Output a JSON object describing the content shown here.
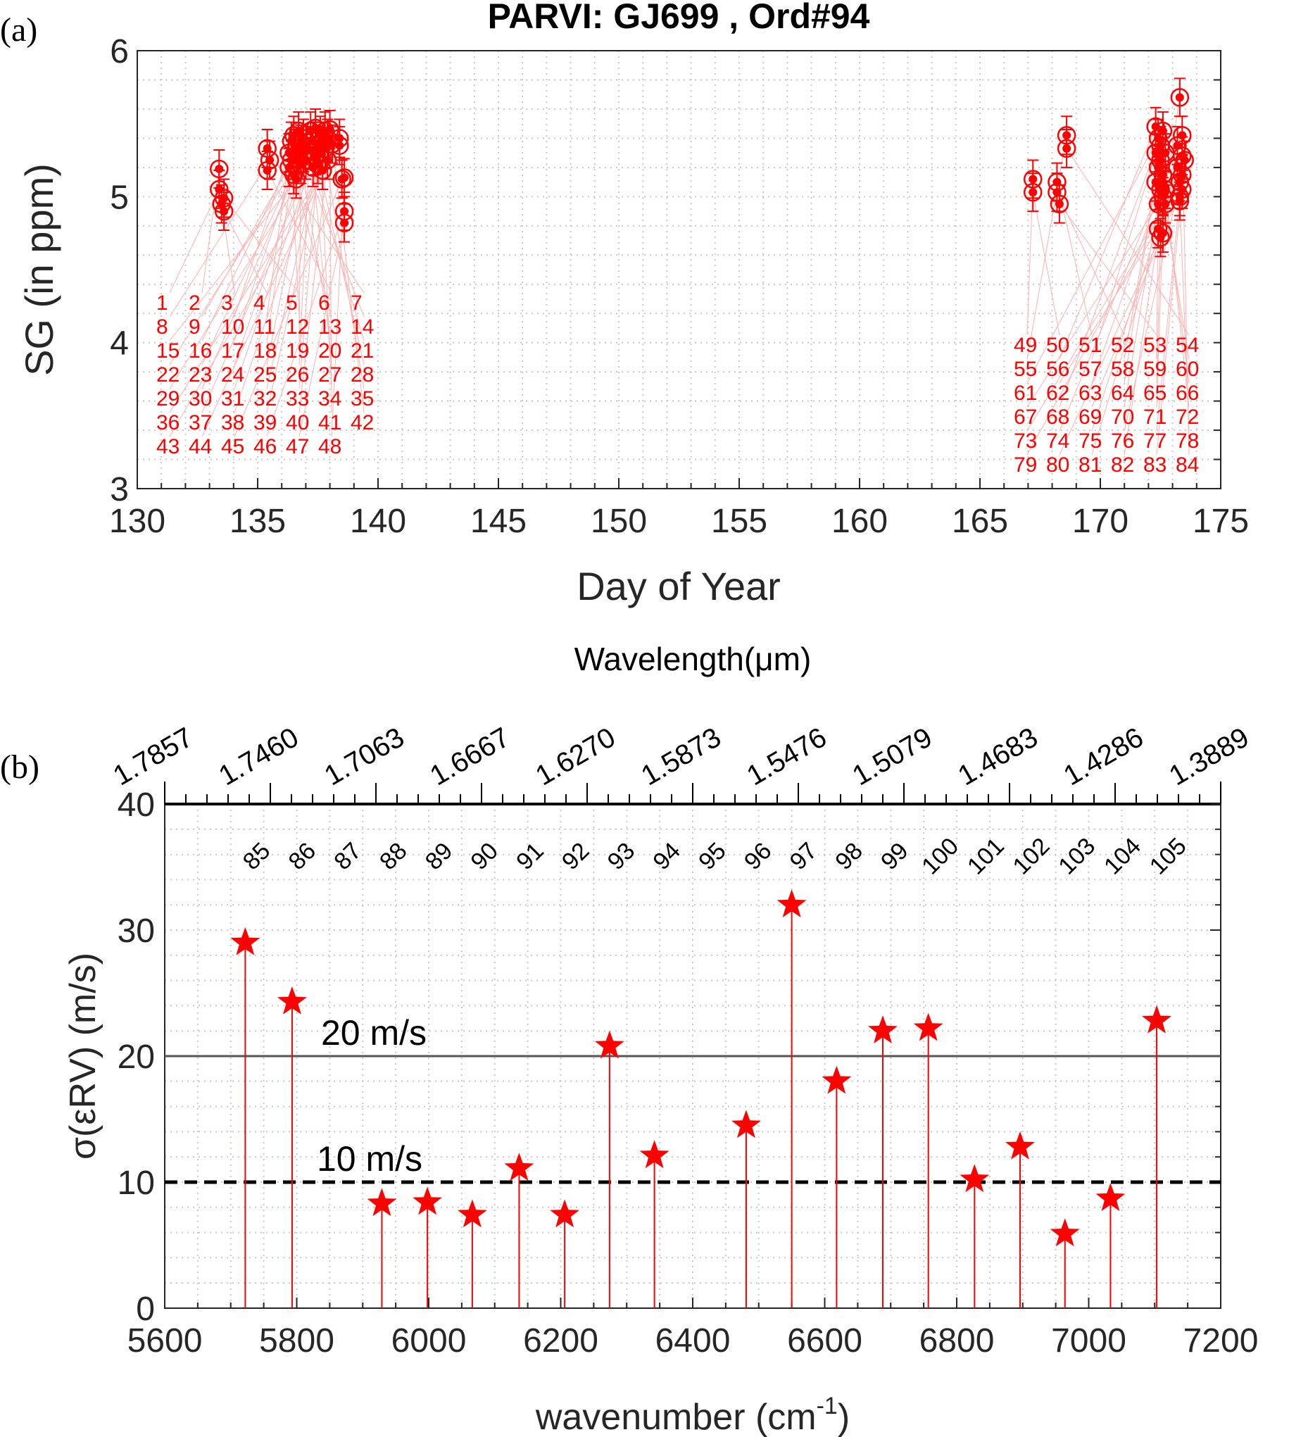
{
  "chart_data": [
    {
      "panel_label": "(a)",
      "type": "scatter",
      "title": "PARVI: GJ699 , Ord#94",
      "xlabel": "Day of Year",
      "ylabel": "SG (in ppm)",
      "xlim": [
        130,
        175
      ],
      "ylim": [
        3,
        6
      ],
      "xticks": [
        130,
        135,
        140,
        145,
        150,
        155,
        160,
        165,
        170,
        175
      ],
      "yticks": [
        3,
        4,
        5,
        6
      ],
      "grid": true,
      "marker_color": "#ff0000",
      "points": [
        [
          133.4,
          5.05,
          1
        ],
        [
          133.4,
          5.19,
          2
        ],
        [
          133.5,
          4.95,
          3
        ],
        [
          133.6,
          4.9,
          4
        ],
        [
          133.6,
          4.99,
          5
        ],
        [
          135.4,
          5.18,
          6
        ],
        [
          135.4,
          5.33,
          7
        ],
        [
          135.5,
          5.25,
          8
        ],
        [
          136.3,
          5.2,
          9
        ],
        [
          136.3,
          5.3,
          10
        ],
        [
          136.4,
          5.38,
          11
        ],
        [
          136.4,
          5.25,
          12
        ],
        [
          136.5,
          5.15,
          13
        ],
        [
          136.5,
          5.42,
          14
        ],
        [
          136.6,
          5.12,
          15
        ],
        [
          136.6,
          5.33,
          16
        ],
        [
          136.7,
          5.28,
          17
        ],
        [
          136.7,
          5.45,
          18
        ],
        [
          136.8,
          5.36,
          19
        ],
        [
          136.8,
          5.22,
          20
        ],
        [
          136.9,
          5.4,
          21
        ],
        [
          136.9,
          5.3,
          22
        ],
        [
          137.0,
          5.35,
          23
        ],
        [
          137.0,
          5.25,
          24
        ],
        [
          137.2,
          5.32,
          25
        ],
        [
          137.2,
          5.45,
          26
        ],
        [
          137.3,
          5.2,
          27
        ],
        [
          137.3,
          5.38,
          28
        ],
        [
          137.4,
          5.28,
          29
        ],
        [
          137.4,
          5.47,
          30
        ],
        [
          137.5,
          5.35,
          31
        ],
        [
          137.5,
          5.22,
          32
        ],
        [
          137.6,
          5.42,
          33
        ],
        [
          137.6,
          5.3,
          34
        ],
        [
          137.7,
          5.38,
          35
        ],
        [
          137.7,
          5.18,
          36
        ],
        [
          137.8,
          5.45,
          37
        ],
        [
          137.8,
          5.33,
          38
        ],
        [
          137.9,
          5.4,
          39
        ],
        [
          137.9,
          5.25,
          40
        ],
        [
          138.0,
          5.46,
          41
        ],
        [
          138.1,
          5.36,
          42
        ],
        [
          138.4,
          5.35,
          43
        ],
        [
          138.4,
          5.4,
          44
        ],
        [
          138.5,
          5.12,
          45
        ],
        [
          138.6,
          4.9,
          46
        ],
        [
          138.6,
          4.82,
          47
        ],
        [
          138.6,
          5.13,
          48
        ],
        [
          167.2,
          5.12,
          49
        ],
        [
          167.2,
          5.03,
          50
        ],
        [
          168.2,
          5.1,
          51
        ],
        [
          168.2,
          5.03,
          52
        ],
        [
          168.3,
          4.95,
          53
        ],
        [
          168.6,
          5.33,
          54
        ],
        [
          168.6,
          5.42,
          55
        ],
        [
          172.3,
          5.48,
          56
        ],
        [
          172.3,
          5.3,
          57
        ],
        [
          172.3,
          5.1,
          58
        ],
        [
          172.4,
          4.95,
          59
        ],
        [
          172.4,
          5.2,
          60
        ],
        [
          172.4,
          5.4,
          61
        ],
        [
          172.4,
          4.78,
          62
        ],
        [
          172.5,
          5.05,
          63
        ],
        [
          172.5,
          5.35,
          64
        ],
        [
          172.5,
          4.72,
          65
        ],
        [
          172.5,
          5.25,
          66
        ],
        [
          172.6,
          5.0,
          67
        ],
        [
          172.6,
          5.45,
          68
        ],
        [
          172.6,
          4.75,
          69
        ],
        [
          172.6,
          5.15,
          70
        ],
        [
          172.7,
          5.3,
          71
        ],
        [
          172.7,
          5.05,
          72
        ],
        [
          172.7,
          4.95,
          73
        ],
        [
          173.2,
          5.35,
          74
        ],
        [
          173.2,
          5.2,
          75
        ],
        [
          173.3,
          5.1,
          76
        ],
        [
          173.3,
          5.0,
          77
        ],
        [
          173.3,
          4.97,
          78
        ],
        [
          173.4,
          5.15,
          79
        ],
        [
          173.4,
          5.05,
          80
        ],
        [
          173.4,
          5.28,
          81
        ],
        [
          173.3,
          5.68,
          82
        ],
        [
          173.5,
          5.25,
          83
        ],
        [
          173.4,
          5.42,
          84
        ]
      ],
      "error_bar": 0.13
    },
    {
      "panel_label": "(b)",
      "type": "scatter",
      "xlabel": "wavenumber (cm",
      "xlabel_sup": "-1",
      "xlabel_end": ")",
      "ylabel": "σ(εRV) (m/s)",
      "top_axis_label": "Wavelength(μm)",
      "xlim": [
        5600,
        7200
      ],
      "ylim": [
        0,
        40
      ],
      "xticks": [
        5600,
        5800,
        6000,
        6200,
        6400,
        6600,
        6800,
        7000,
        7200
      ],
      "yticks": [
        0,
        10,
        20,
        30,
        40
      ],
      "top_ticks": [
        "1.7857",
        "1.7460",
        "1.7063",
        "1.6667",
        "1.6270",
        "1.5873",
        "1.5476",
        "1.5079",
        "1.4683",
        "1.4286",
        "1.3889"
      ],
      "grid": true,
      "marker": "star",
      "marker_color": "#ff0000",
      "orders": [
        "85",
        "86",
        "87",
        "88",
        "89",
        "90",
        "91",
        "92",
        "93",
        "94",
        "95",
        "96",
        "97",
        "98",
        "99",
        "100",
        "101",
        "102",
        "103",
        "104",
        "105"
      ],
      "points": [
        {
          "order": 85,
          "x": 5722,
          "y": 29.0
        },
        {
          "order": 86,
          "x": 5793,
          "y": 24.3
        },
        {
          "order": 88,
          "x": 5929,
          "y": 8.3
        },
        {
          "order": 89,
          "x": 5998,
          "y": 8.4
        },
        {
          "order": 90,
          "x": 6066,
          "y": 7.4
        },
        {
          "order": 91,
          "x": 6137,
          "y": 11.1
        },
        {
          "order": 92,
          "x": 6206,
          "y": 7.4
        },
        {
          "order": 93,
          "x": 6274,
          "y": 20.8
        },
        {
          "order": 94,
          "x": 6342,
          "y": 12.1
        },
        {
          "order": 96,
          "x": 6481,
          "y": 14.5
        },
        {
          "order": 97,
          "x": 6550,
          "y": 32.0
        },
        {
          "order": 98,
          "x": 6618,
          "y": 18.0
        },
        {
          "order": 99,
          "x": 6688,
          "y": 22.0
        },
        {
          "order": 100,
          "x": 6757,
          "y": 22.2
        },
        {
          "order": 101,
          "x": 6827,
          "y": 10.2
        },
        {
          "order": 102,
          "x": 6896,
          "y": 12.8
        },
        {
          "order": 103,
          "x": 6964,
          "y": 5.9
        },
        {
          "order": 104,
          "x": 7033,
          "y": 8.7
        },
        {
          "order": 105,
          "x": 7103,
          "y": 22.8
        }
      ],
      "reference_lines": [
        {
          "y": 20,
          "label": "20 m/s",
          "style": "solid"
        },
        {
          "y": 10,
          "label": "10 m/s",
          "style": "dashed"
        }
      ]
    }
  ]
}
